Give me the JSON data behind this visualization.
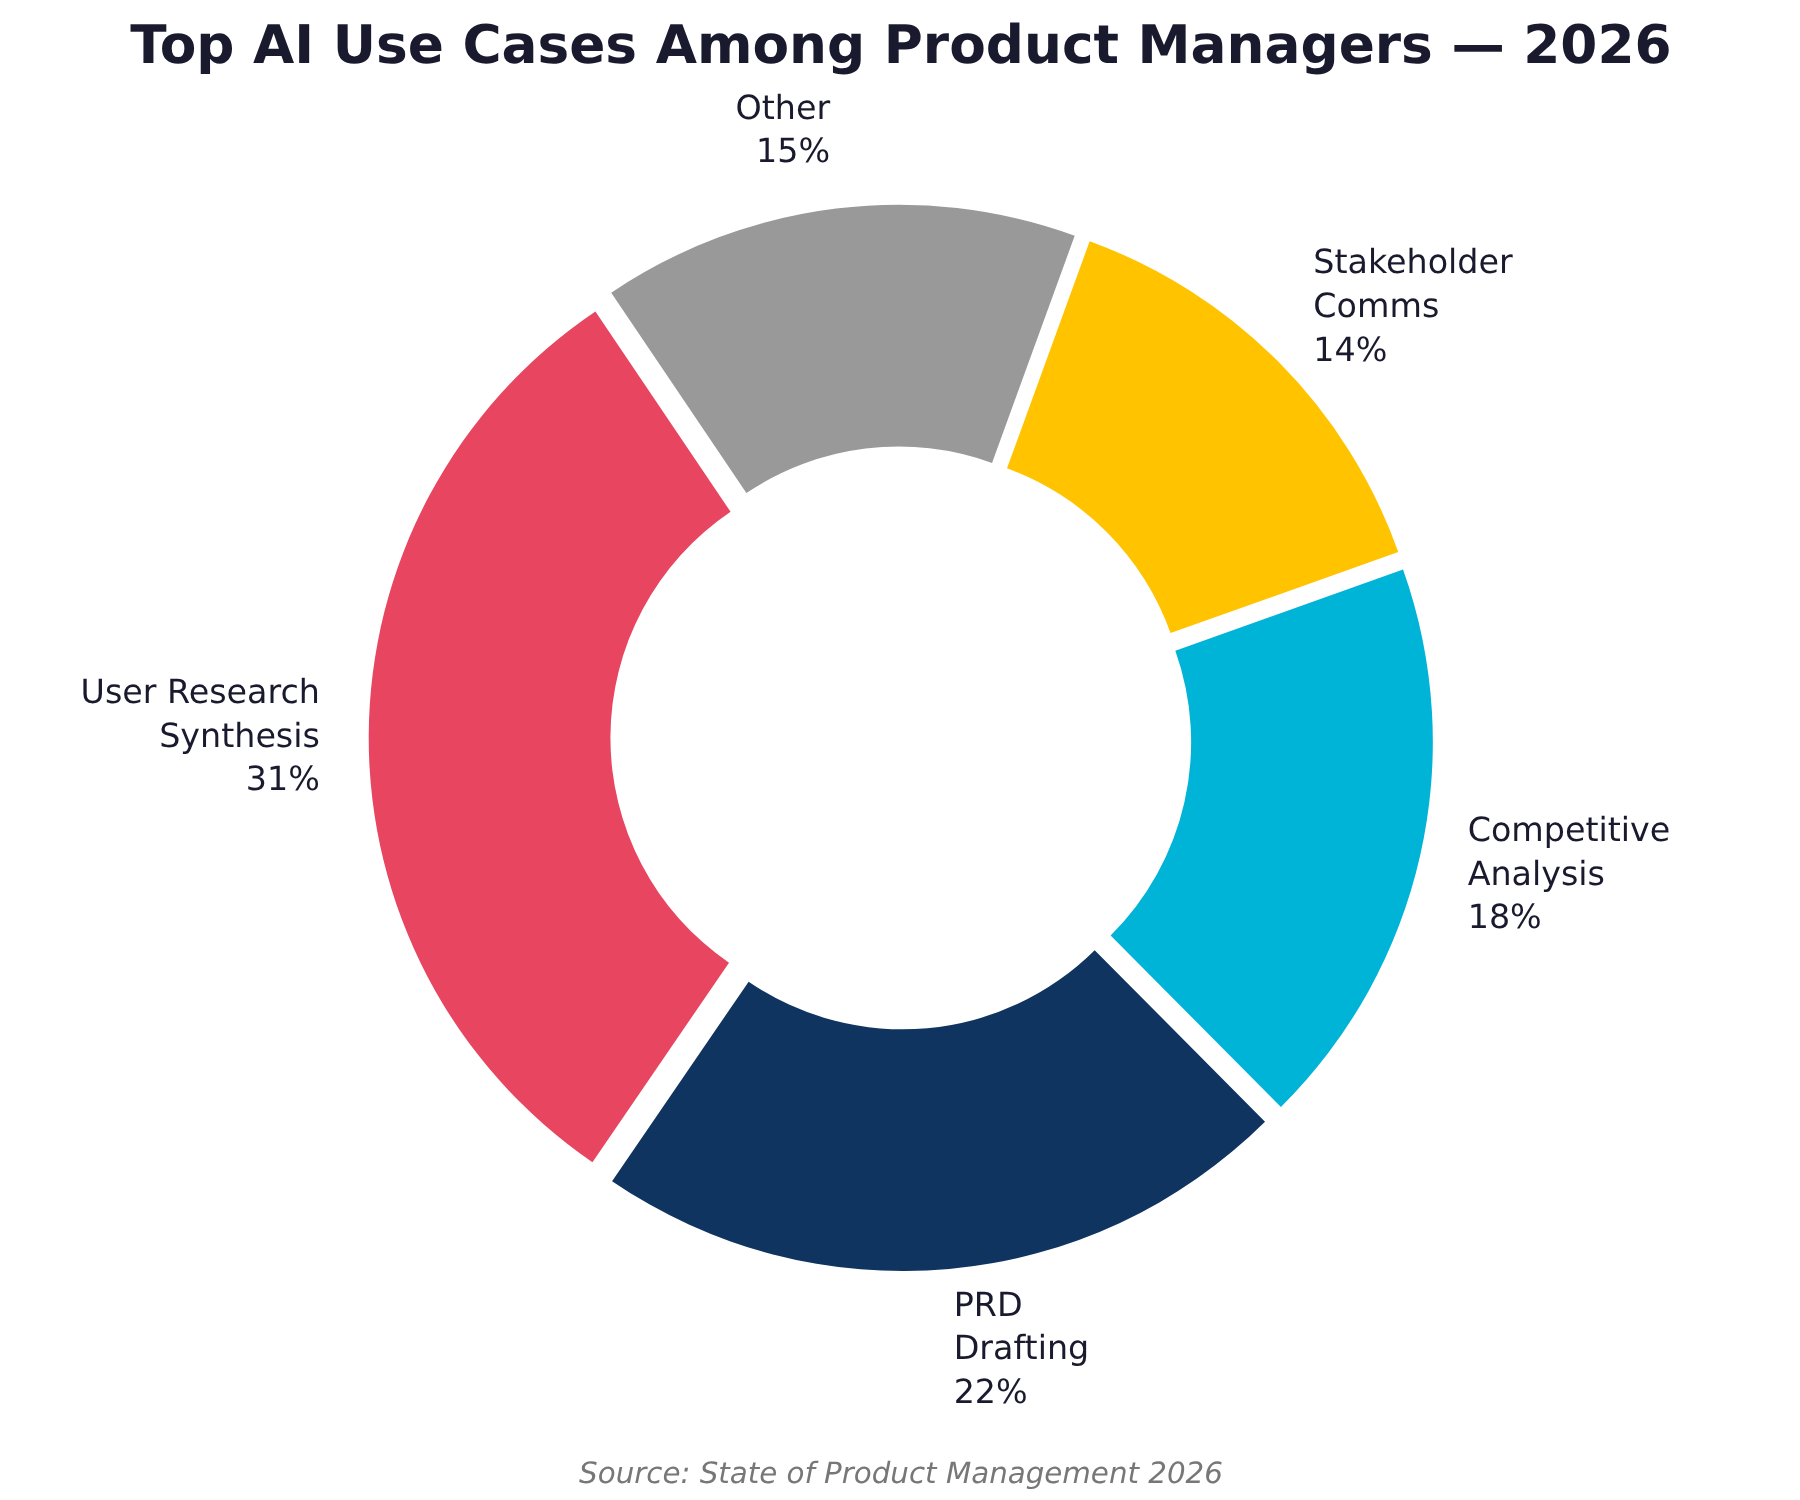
{
  "chart_data": {
    "type": "donut",
    "title": "Top AI Use Cases Among Product Managers — 2026",
    "categories": [
      "User Research\nSynthesis",
      "PRD\nDrafting",
      "Competitive\nAnalysis",
      "Stakeholder\nComms",
      "Other"
    ],
    "values": [
      31,
      22,
      18,
      14,
      15
    ],
    "value_labels": [
      "31%",
      "22%",
      "18%",
      "14%",
      "15%"
    ],
    "colors": [
      "#e84560",
      "#0f3460",
      "#00b4d8",
      "#ffc300",
      "#999999"
    ],
    "annotations": [
      "Source: State of Product Management 2026"
    ]
  }
}
